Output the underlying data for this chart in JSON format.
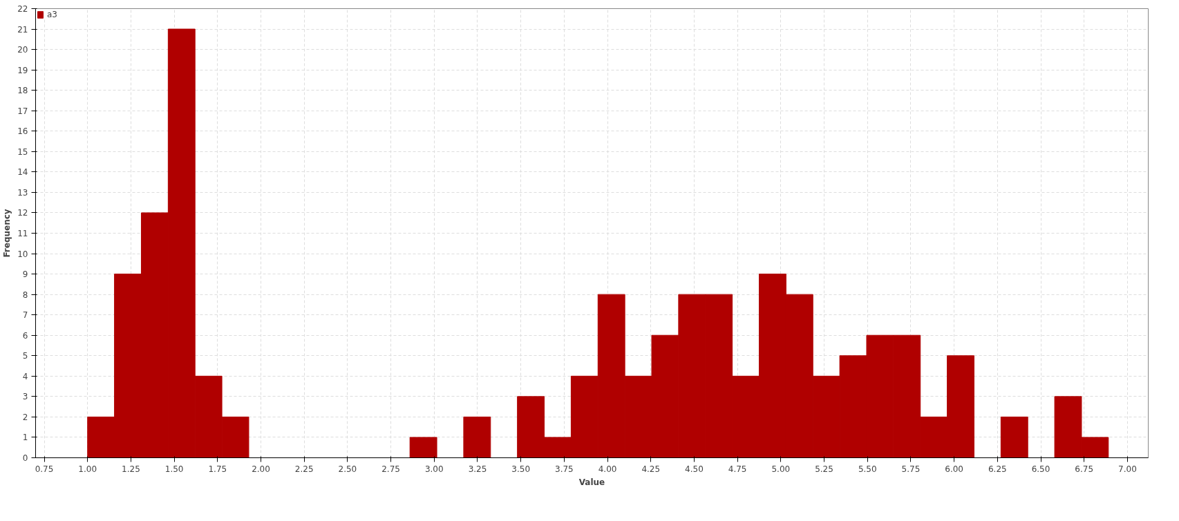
{
  "chart_data": {
    "type": "histogram",
    "xlabel": "Value",
    "ylabel": "Frequency",
    "bins": [
      1.0,
      1.155,
      1.31,
      1.465,
      1.62,
      1.775,
      1.93,
      2.085,
      2.24,
      2.395,
      2.55,
      2.705,
      2.86,
      3.015,
      3.17,
      3.325,
      3.48,
      3.635,
      3.79,
      3.945,
      4.1,
      4.255,
      4.41,
      4.565,
      4.72,
      4.875,
      5.03,
      5.185,
      5.34,
      5.495,
      5.65,
      5.805,
      5.96,
      6.115,
      6.27,
      6.425,
      6.58,
      6.735,
      6.89
    ],
    "series": [
      {
        "name": "a3",
        "color": "#b00000",
        "values": [
          2,
          9,
          12,
          21,
          4,
          2,
          0,
          0,
          0,
          0,
          0,
          0,
          1,
          0,
          2,
          0,
          3,
          1,
          4,
          8,
          4,
          6,
          8,
          8,
          4,
          9,
          8,
          4,
          5,
          6,
          6,
          2,
          5,
          0,
          2,
          0,
          3,
          1
        ]
      }
    ],
    "xlim": [
      0.7,
      7.12
    ],
    "xticks": [
      0.75,
      {
        "value": 1.0,
        "label": "1.00"
      },
      1.25,
      {
        "value": 1.5,
        "label": "1.50"
      },
      1.75,
      {
        "value": 2.0,
        "label": "2.00"
      },
      2.25,
      {
        "value": 2.5,
        "label": "2.50"
      },
      2.75,
      {
        "value": 3.0,
        "label": "3.00"
      },
      3.25,
      {
        "value": 3.5,
        "label": "3.50"
      },
      3.75,
      {
        "value": 4.0,
        "label": "4.00"
      },
      4.25,
      {
        "value": 4.5,
        "label": "4.50"
      },
      4.75,
      {
        "value": 5.0,
        "label": "5.00"
      },
      5.25,
      {
        "value": 5.5,
        "label": "5.50"
      },
      5.75,
      {
        "value": 6.0,
        "label": "6.00"
      },
      6.25,
      {
        "value": 6.5,
        "label": "6.50"
      },
      6.75,
      {
        "value": 7.0,
        "label": "7.00"
      }
    ],
    "ylim": [
      0,
      22
    ],
    "yticks": [
      0,
      1,
      2,
      3,
      4,
      5,
      6,
      7,
      8,
      9,
      10,
      11,
      12,
      13,
      14,
      15,
      16,
      17,
      18,
      19,
      20,
      21,
      22
    ],
    "grid": true,
    "legend": "top left"
  }
}
